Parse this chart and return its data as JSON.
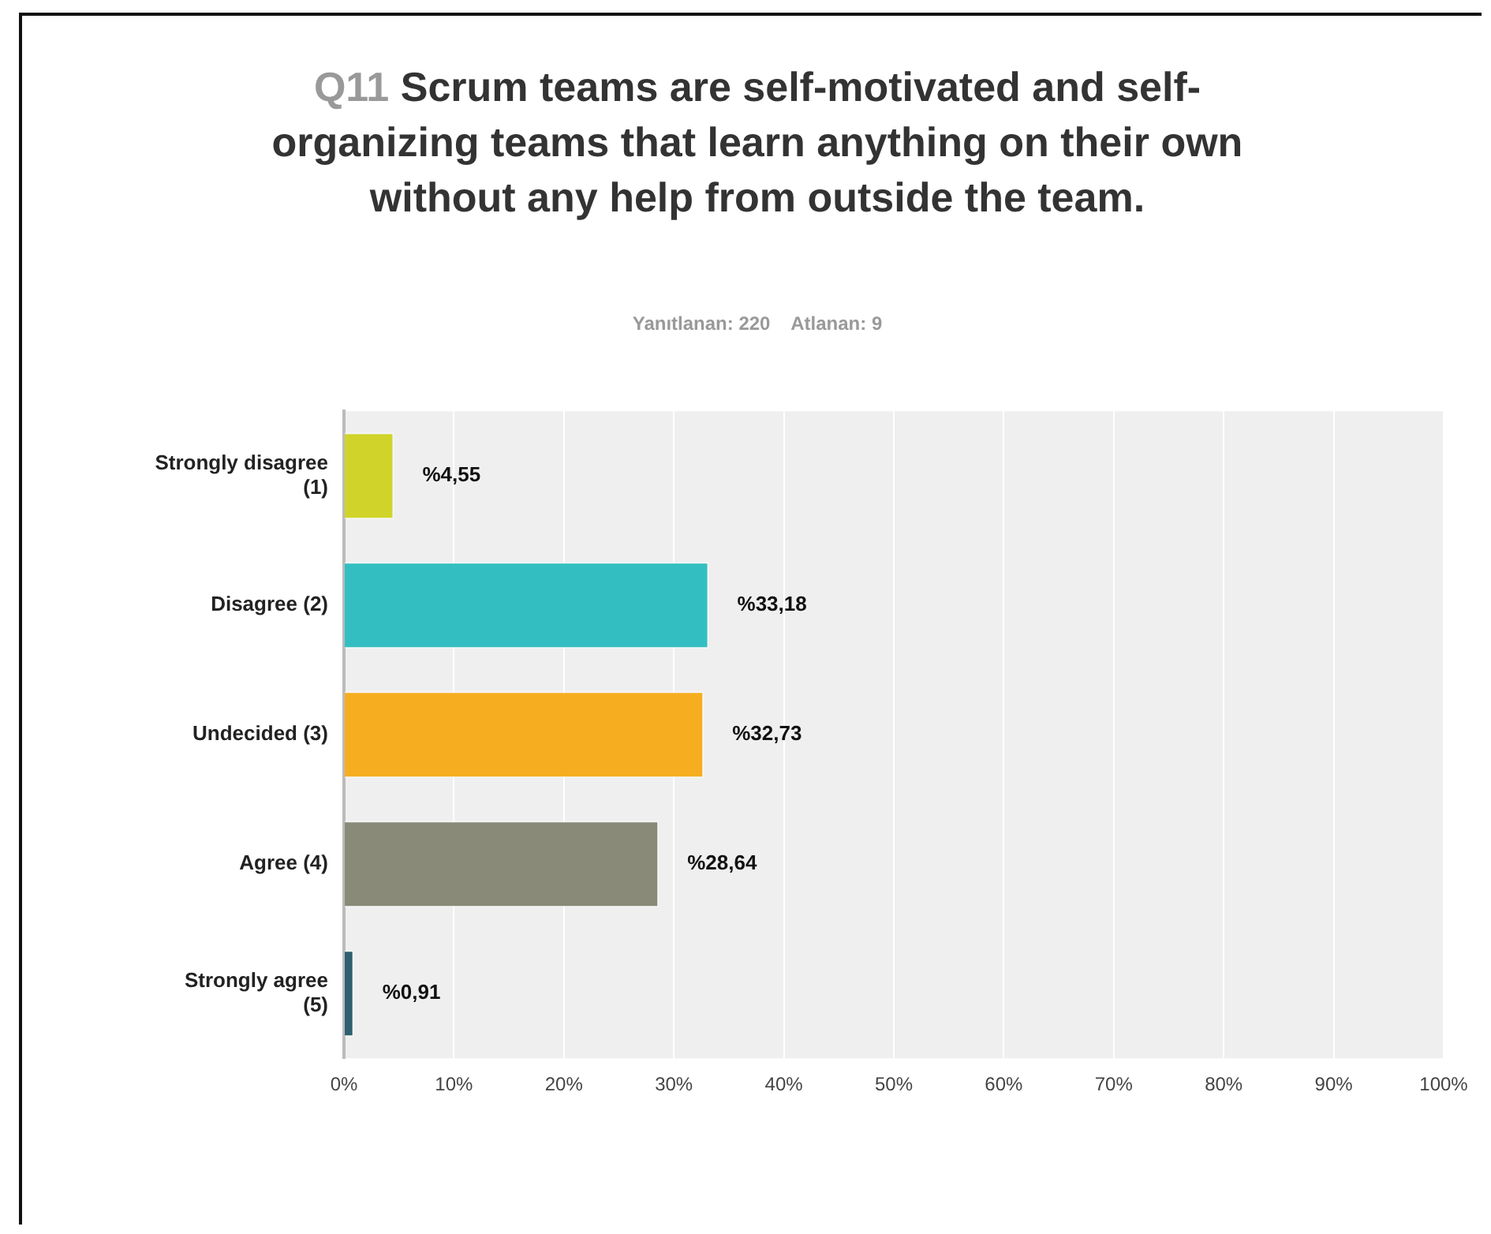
{
  "chart_data": {
    "type": "bar",
    "orientation": "horizontal",
    "title": "Q11 Scrum teams are self-motivated and self-organizing teams that learn anything on their own without any help from outside the team.",
    "subtitle": "Yanıtlanan: 220    Atlanan: 9",
    "categories": [
      "Strongly disagree (1)",
      "Disagree (2)",
      "Undecided (3)",
      "Agree (4)",
      "Strongly agree (5)"
    ],
    "values": [
      4.55,
      33.18,
      32.73,
      28.64,
      0.91
    ],
    "colors": [
      "#d0d42a",
      "#33bfc1",
      "#f6ae20",
      "#898a78",
      "#2e6070"
    ],
    "value_labels": [
      "%4,55",
      "%33,18",
      "%32,73",
      "%28,64",
      "%0,91"
    ],
    "xlim": [
      0,
      100
    ],
    "xticks": [
      {
        "value": 0,
        "label": "0%"
      },
      {
        "value": 10,
        "label": "10%"
      },
      {
        "value": 20,
        "label": "20%"
      },
      {
        "value": 30,
        "label": "30%"
      },
      {
        "value": 40,
        "label": "40%"
      },
      {
        "value": 50,
        "label": "50%"
      },
      {
        "value": 60,
        "label": "60%"
      },
      {
        "value": 70,
        "label": "70%"
      },
      {
        "value": 80,
        "label": "80%"
      },
      {
        "value": 90,
        "label": "90%"
      },
      {
        "value": 100,
        "label": "100%"
      }
    ],
    "grid": "x"
  }
}
